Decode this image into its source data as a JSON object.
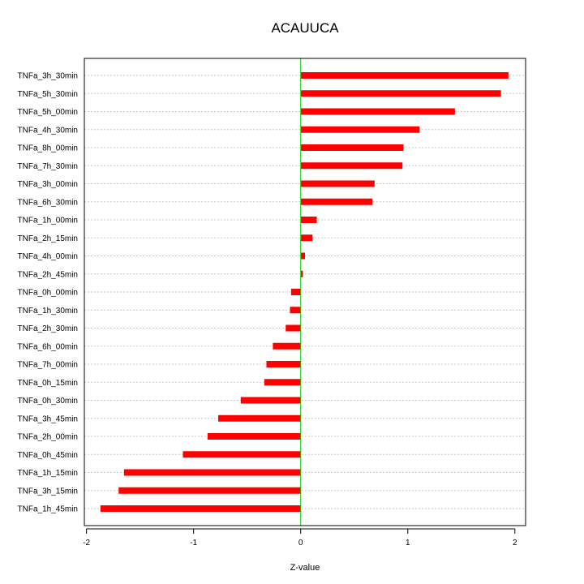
{
  "chart_data": {
    "type": "bar",
    "orientation": "horizontal",
    "title": "ACAUUCA",
    "xlabel": "Z-value",
    "ylabel": "",
    "xlim": [
      -2.02,
      2.1
    ],
    "xticks": [
      -2,
      -1,
      0,
      1,
      2
    ],
    "xtick_labels": [
      "-2",
      "-1",
      "0",
      "1",
      "2"
    ],
    "grid": "horizontal dotted",
    "zero_line_color": "#00cc00",
    "bar_color": "#ff0000",
    "categories": [
      "TNFa_3h_30min",
      "TNFa_5h_30min",
      "TNFa_5h_00min",
      "TNFa_4h_30min",
      "TNFa_8h_00min",
      "TNFa_7h_30min",
      "TNFa_3h_00min",
      "TNFa_6h_30min",
      "TNFa_1h_00min",
      "TNFa_2h_15min",
      "TNFa_4h_00min",
      "TNFa_2h_45min",
      "TNFa_0h_00min",
      "TNFa_1h_30min",
      "TNFa_2h_30min",
      "TNFa_6h_00min",
      "TNFa_7h_00min",
      "TNFa_0h_15min",
      "TNFa_0h_30min",
      "TNFa_3h_45min",
      "TNFa_2h_00min",
      "TNFa_0h_45min",
      "TNFa_1h_15min",
      "TNFa_3h_15min",
      "TNFa_1h_45min"
    ],
    "values": [
      1.94,
      1.87,
      1.44,
      1.11,
      0.96,
      0.95,
      0.69,
      0.67,
      0.15,
      0.11,
      0.04,
      0.02,
      -0.09,
      -0.1,
      -0.14,
      -0.26,
      -0.32,
      -0.34,
      -0.56,
      -0.77,
      -0.87,
      -1.1,
      -1.65,
      -1.7,
      -1.87
    ]
  }
}
